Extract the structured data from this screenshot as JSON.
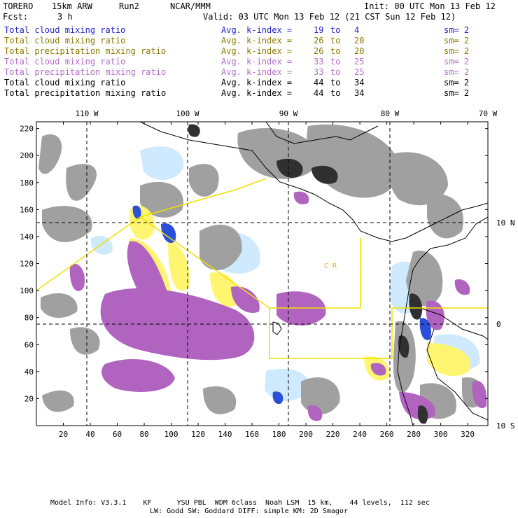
{
  "header": {
    "model": "TORERO",
    "resolution": "15km ARW",
    "run": "Run2",
    "org": "NCAR/MMM",
    "init": "Init: 00 UTC Mon 13 Feb 12",
    "fcst_label": "Fcst:",
    "fcst_value": "3 h",
    "valid": "Valid: 03 UTC Mon 13 Feb 12 (21 CST Sun 12 Feb 12)"
  },
  "legend": [
    {
      "field": "Total cloud mixing ratio",
      "kindex": "Avg. k-index =",
      "k1": "19",
      "to": "to",
      "k2": "4",
      "sm": "sm= 2",
      "color": "#2323c8"
    },
    {
      "field": "Total cloud mixing ratio",
      "kindex": "Avg. k-index =",
      "k1": "26",
      "to": "to",
      "k2": "20",
      "sm": "sm= 2",
      "color": "#8c7a00"
    },
    {
      "field": "Total precipitation mixing ratio",
      "kindex": "Avg. k-index =",
      "k1": "26",
      "to": "to",
      "k2": "20",
      "sm": "sm= 2",
      "color": "#8c7a00"
    },
    {
      "field": "Total cloud mixing ratio",
      "kindex": "Avg. k-index =",
      "k1": "33",
      "to": "to",
      "k2": "25",
      "sm": "sm= 2",
      "color": "#b46ec8"
    },
    {
      "field": "Total precipitation mixing ratio",
      "kindex": "Avg. k-index =",
      "k1": "33",
      "to": "to",
      "k2": "25",
      "sm": "sm= 2",
      "color": "#b46ec8"
    },
    {
      "field": "Total cloud mixing ratio",
      "kindex": "Avg. k-index =",
      "k1": "44",
      "to": "to",
      "k2": "34",
      "sm": "sm= 2",
      "color": "#000000"
    },
    {
      "field": "Total precipitation mixing ratio",
      "kindex": "Avg. k-index =",
      "k1": "44",
      "to": "to",
      "k2": "34",
      "sm": "sm= 2",
      "color": "#000000"
    }
  ],
  "map": {
    "lon_labels": [
      "110 W",
      "100 W",
      "90 W",
      "80 W",
      "70 W"
    ],
    "lat_labels": [
      "10 N",
      "0",
      "10 S"
    ],
    "x_ticks": [
      "20",
      "40",
      "60",
      "80",
      "100",
      "120",
      "140",
      "160",
      "180",
      "200",
      "220",
      "240",
      "260",
      "280",
      "300",
      "320"
    ],
    "y_ticks": [
      "220",
      "200",
      "180",
      "160",
      "140",
      "120",
      "100",
      "80",
      "60",
      "40",
      "20"
    ],
    "country_label": "C R",
    "colors": {
      "gray": "#a0a0a0",
      "dark": "#303030",
      "purple": "#b064c0",
      "yellow": "#fff570",
      "lightblue": "#cfeaff",
      "blue": "#2a4fd8",
      "boundary_yellow": "#f0e000"
    }
  },
  "footer": {
    "line1": "Model Info: V3.3.1    KF      YSU PBL  WDM 6class  Noah LSM  15 km,    44 levels,  112 sec",
    "line2": "LW: Godd SW: Goddard DIFF: simple KM: 2D Smagor"
  }
}
